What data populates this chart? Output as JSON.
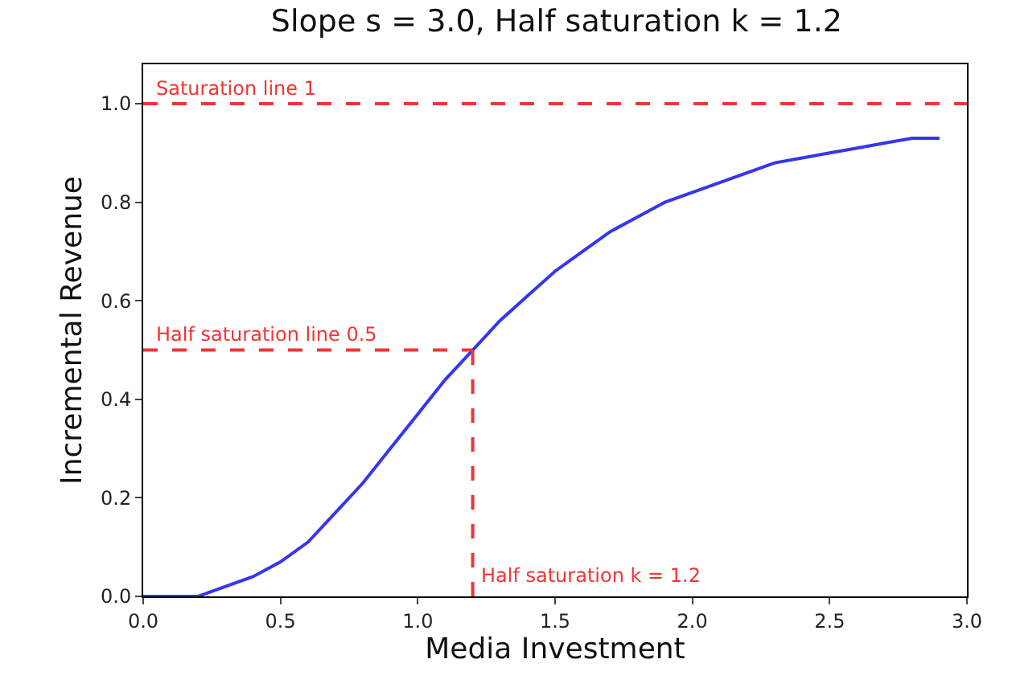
{
  "chart_data": {
    "type": "line",
    "title": "Slope s = 3.0, Half saturation k = 1.2",
    "xlabel": "Media Investment",
    "ylabel": "Incremental Revenue",
    "x": [
      0,
      0.1,
      0.2,
      0.3,
      0.4,
      0.5,
      0.6,
      0.7,
      0.8,
      0.9,
      1.0,
      1.1,
      1.2,
      1.3,
      1.4,
      1.5,
      1.6,
      1.7,
      1.8,
      1.9,
      2.0,
      2.1,
      2.2,
      2.3,
      2.4,
      2.5,
      2.6,
      2.7,
      2.8,
      2.9
    ],
    "series": [
      {
        "color": "#3636f0",
        "values": [
          0,
          0,
          0,
          0.02,
          0.04,
          0.07,
          0.11,
          0.17,
          0.23,
          0.3,
          0.37,
          0.44,
          0.5,
          0.56,
          0.61,
          0.66,
          0.7,
          0.74,
          0.77,
          0.8,
          0.82,
          0.84,
          0.86,
          0.88,
          0.89,
          0.9,
          0.91,
          0.92,
          0.93,
          0.93
        ]
      }
    ],
    "xlim": [
      0,
      3
    ],
    "xticks": [
      {
        "value": 0,
        "label": "0.0"
      },
      {
        "value": 0.5,
        "label": "0.5"
      },
      {
        "value": 1,
        "label": "1.0"
      },
      {
        "value": 1.5,
        "label": "1.5"
      },
      {
        "value": 2,
        "label": "2.0"
      },
      {
        "value": 2.5,
        "label": "2.5"
      },
      {
        "value": 3,
        "label": "3.0"
      }
    ],
    "ylim": [
      0,
      1.08
    ],
    "yticks": [
      {
        "value": 0,
        "label": "0.0"
      },
      {
        "value": 0.2,
        "label": "0.2"
      },
      {
        "value": 0.4,
        "label": "0.4"
      },
      {
        "value": 0.6,
        "label": "0.6"
      },
      {
        "value": 0.8,
        "label": "0.8"
      },
      {
        "value": 1,
        "label": "1.0"
      }
    ],
    "ref_lines": [
      {
        "axis": "y",
        "value": 1,
        "label": "Saturation line 1",
        "color": "#f03434",
        "line_style": "dashed"
      },
      {
        "axis": "y",
        "value": 0.5,
        "label": "Half saturation line 0.5",
        "color": "#f03434",
        "line_style": "dashed"
      },
      {
        "axis": "x",
        "value": 1.2,
        "label": "Half saturation k = 1.2",
        "color": "#f03434",
        "line_style": "dashed"
      }
    ],
    "grid": false,
    "marker": "none",
    "line_style": "solid"
  }
}
